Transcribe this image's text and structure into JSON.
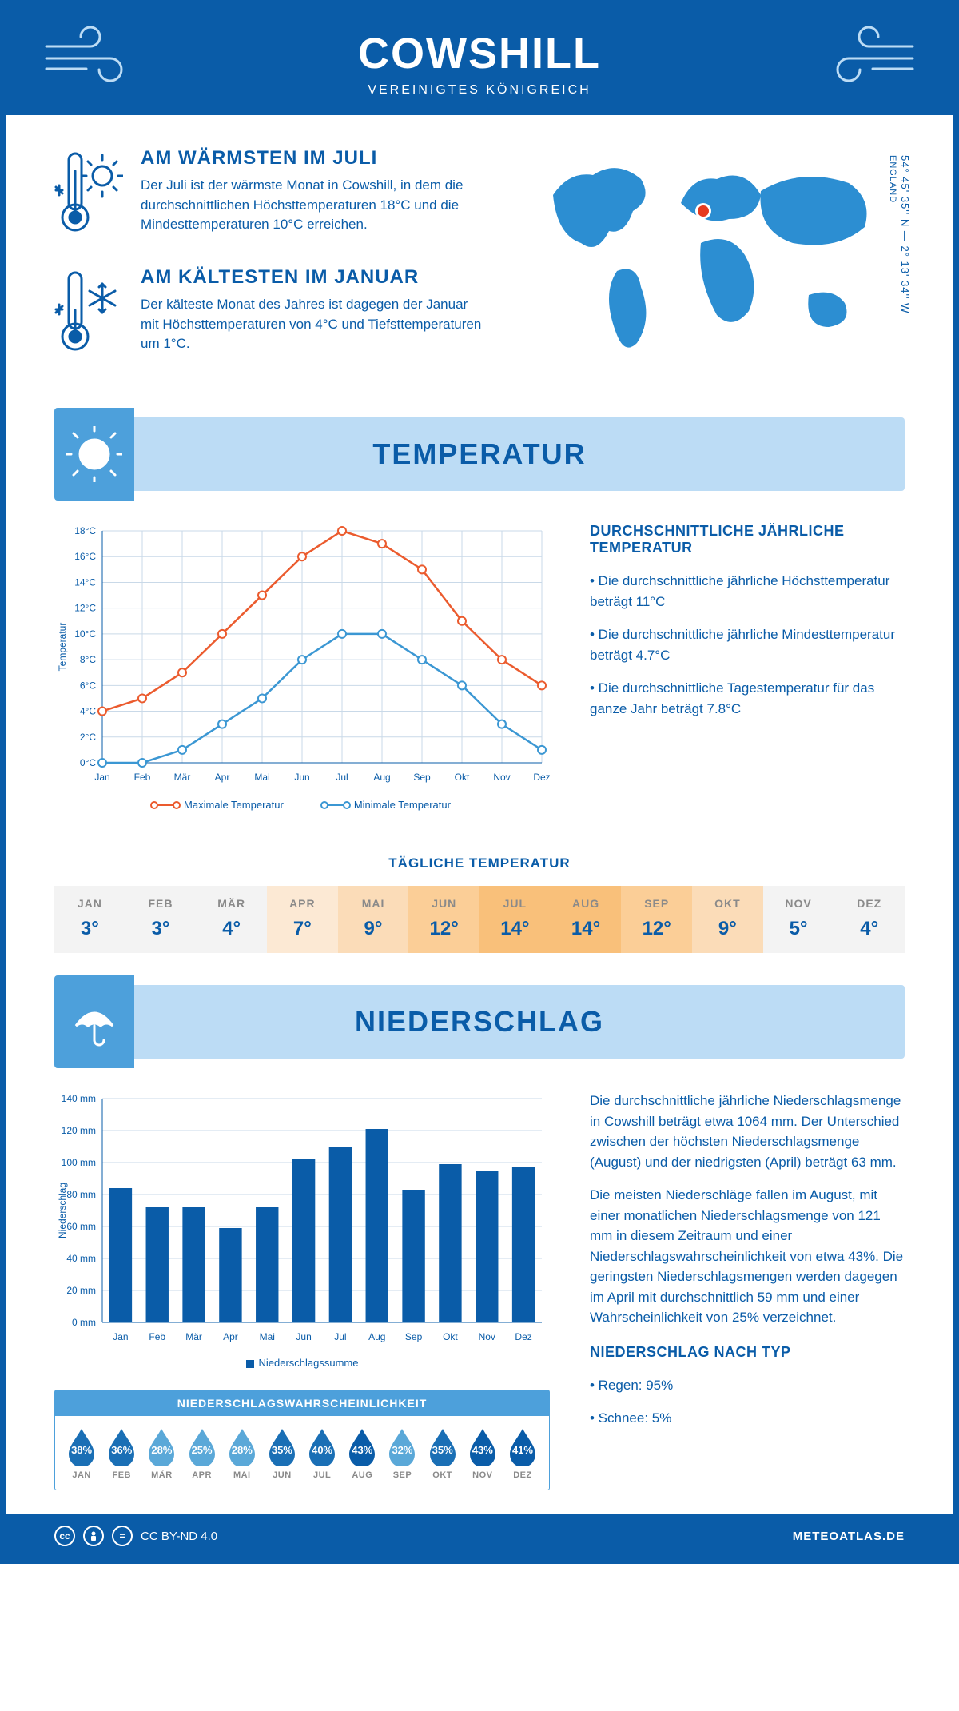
{
  "header": {
    "title": "COWSHILL",
    "subtitle": "VEREINIGTES KÖNIGREICH"
  },
  "location": {
    "coords": "54° 45' 35'' N — 2° 13' 34'' W",
    "region": "ENGLAND",
    "marker_color": "#e63a1f"
  },
  "facts": {
    "warm": {
      "title": "AM WÄRMSTEN IM JULI",
      "text": "Der Juli ist der wärmste Monat in Cowshill, in dem die durchschnittlichen Höchsttemperaturen 18°C und die Mindesttemperaturen 10°C erreichen."
    },
    "cold": {
      "title": "AM KÄLTESTEN IM JANUAR",
      "text": "Der kälteste Monat des Jahres ist dagegen der Januar mit Höchsttemperaturen von 4°C und Tiefsttemperaturen um 1°C."
    }
  },
  "months_short": [
    "Jan",
    "Feb",
    "Mär",
    "Apr",
    "Mai",
    "Jun",
    "Jul",
    "Aug",
    "Sep",
    "Okt",
    "Nov",
    "Dez"
  ],
  "months_upper": [
    "JAN",
    "FEB",
    "MÄR",
    "APR",
    "MAI",
    "JUN",
    "JUL",
    "AUG",
    "SEP",
    "OKT",
    "NOV",
    "DEZ"
  ],
  "temperature": {
    "section_title": "TEMPERATUR",
    "chart": {
      "type": "line",
      "ylabel": "Temperatur",
      "ylim": [
        0,
        18
      ],
      "ytick_step": 2,
      "ytick_suffix": "°C",
      "grid_color": "#c9d9e8",
      "background_color": "#ffffff",
      "series": [
        {
          "name": "Maximale Temperatur",
          "color": "#eb5b2e",
          "values": [
            4,
            5,
            7,
            10,
            13,
            16,
            18,
            17,
            15,
            11,
            8,
            6
          ]
        },
        {
          "name": "Minimale Temperatur",
          "color": "#3b97d3",
          "values": [
            0,
            0,
            1,
            3,
            5,
            8,
            10,
            10,
            8,
            6,
            3,
            1
          ]
        }
      ],
      "line_width": 2.5,
      "marker": "circle",
      "marker_size": 5
    },
    "summary": {
      "title": "DURCHSCHNITTLICHE JÄHRLICHE TEMPERATUR",
      "bullets": [
        "• Die durchschnittliche jährliche Höchsttemperatur beträgt 11°C",
        "• Die durchschnittliche jährliche Mindesttemperatur beträgt 4.7°C",
        "• Die durchschnittliche Tagestemperatur für das ganze Jahr beträgt 7.8°C"
      ]
    },
    "daily": {
      "title": "TÄGLICHE TEMPERATUR",
      "values": [
        3,
        3,
        4,
        7,
        9,
        12,
        14,
        14,
        12,
        9,
        5,
        4
      ],
      "cell_colors": [
        "#f3f3f3",
        "#f3f3f3",
        "#f3f3f3",
        "#fce9d4",
        "#fbdcb8",
        "#fbce97",
        "#f9c07a",
        "#f9c07a",
        "#fbce97",
        "#fbdcb8",
        "#f3f3f3",
        "#f3f3f3"
      ]
    }
  },
  "precip": {
    "section_title": "NIEDERSCHLAG",
    "chart": {
      "type": "bar",
      "ylabel": "Niederschlag",
      "ylim": [
        0,
        140
      ],
      "ytick_step": 20,
      "ytick_suffix": " mm",
      "bar_color": "#0a5ca8",
      "grid_color": "#c9d9e8",
      "values": [
        84,
        72,
        72,
        59,
        72,
        102,
        110,
        121,
        83,
        99,
        95,
        97
      ],
      "legend": "Niederschlagssumme"
    },
    "text": {
      "p1": "Die durchschnittliche jährliche Niederschlagsmenge in Cowshill beträgt etwa 1064 mm. Der Unterschied zwischen der höchsten Niederschlagsmenge (August) und der niedrigsten (April) beträgt 63 mm.",
      "p2": "Die meisten Niederschläge fallen im August, mit einer monatlichen Niederschlagsmenge von 121 mm in diesem Zeitraum und einer Niederschlagswahrscheinlichkeit von etwa 43%. Die geringsten Niederschlagsmengen werden dagegen im April mit durchschnittlich 59 mm und einer Wahrscheinlichkeit von 25% verzeichnet.",
      "type_title": "NIEDERSCHLAG NACH TYP",
      "type_items": [
        "• Regen: 95%",
        "• Schnee: 5%"
      ]
    },
    "probability": {
      "title": "NIEDERSCHLAGSWAHRSCHEINLICHKEIT",
      "values": [
        38,
        36,
        28,
        25,
        28,
        35,
        40,
        43,
        32,
        35,
        43,
        41
      ],
      "drop_colors": [
        "#1a6fb5",
        "#1a6fb5",
        "#5aa8d8",
        "#5aa8d8",
        "#5aa8d8",
        "#1a6fb5",
        "#1a6fb5",
        "#0a5ca8",
        "#5aa8d8",
        "#1a6fb5",
        "#0a5ca8",
        "#0a5ca8"
      ]
    }
  },
  "footer": {
    "license": "CC BY-ND 4.0",
    "site": "METEOATLAS.DE"
  },
  "palette": {
    "brand": "#0a5ca8",
    "light": "#bcdcf5",
    "mid": "#4da0db",
    "map": "#2c8ed2"
  }
}
